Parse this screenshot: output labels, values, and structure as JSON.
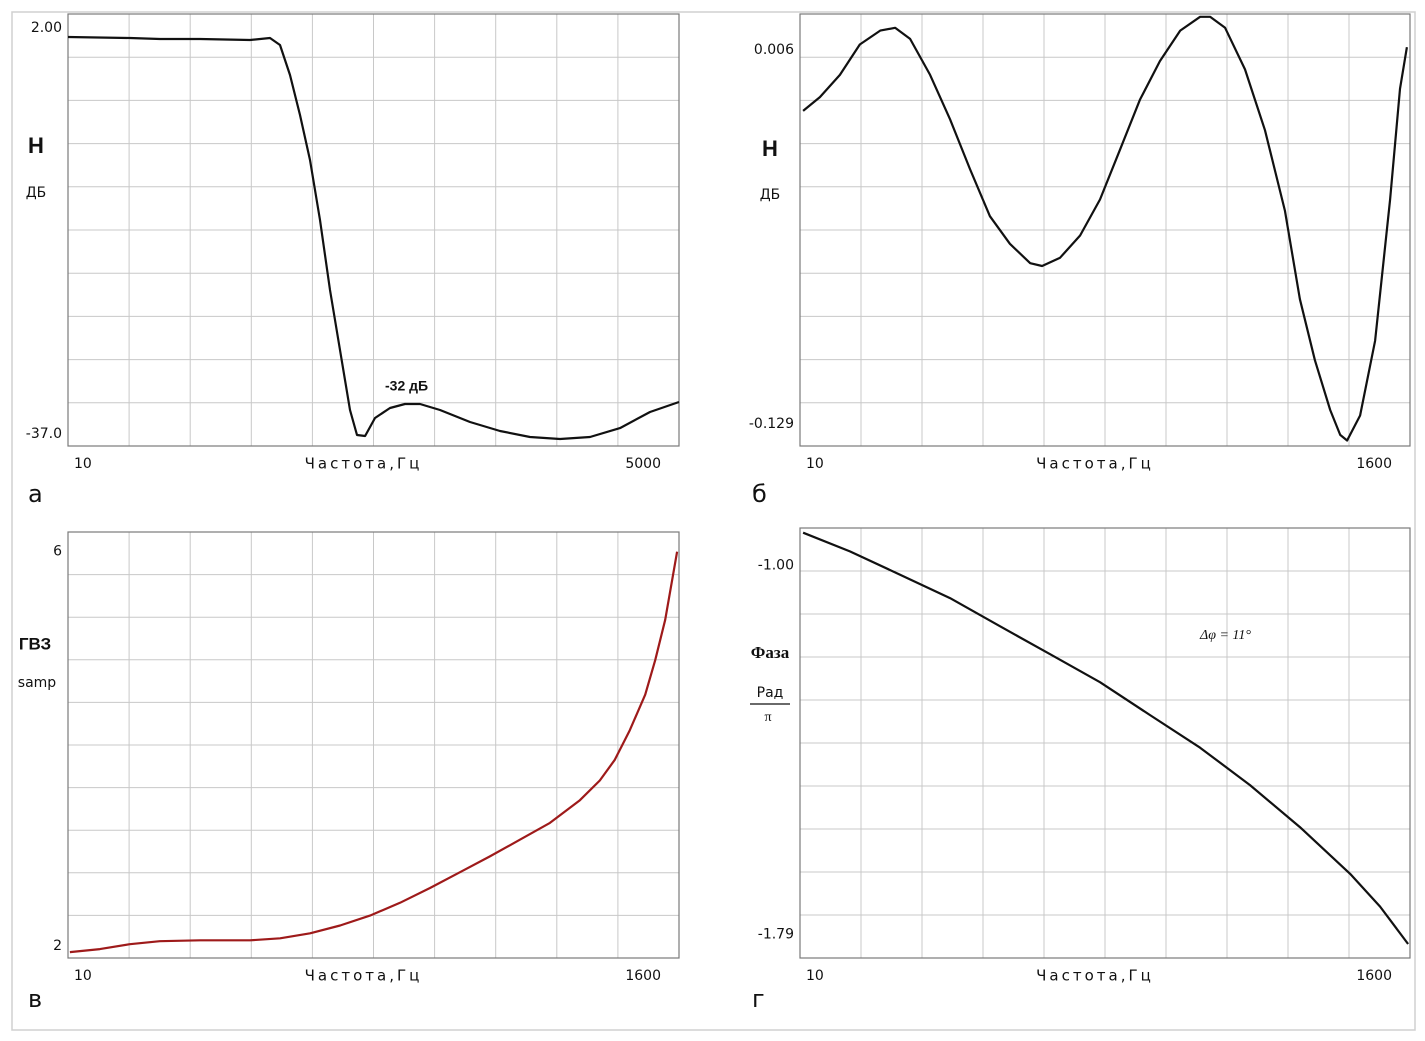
{
  "chart_data": [
    {
      "type": "line",
      "panel_label": "а",
      "y_label": "H",
      "y_unit": "ДБ",
      "x_label": "Частота,Гц",
      "xlim": [
        10,
        5000
      ],
      "xticks": [
        10,
        5000
      ],
      "ylim": [
        -37,
        2
      ],
      "yticks": [
        {
          "value": 2,
          "label": "2.00"
        },
        {
          "value": -37,
          "label": "-37.0"
        }
      ],
      "grid": true,
      "color": "#111111",
      "x": [
        10,
        516,
        761,
        1088,
        1496,
        1660,
        1741,
        1823,
        1905,
        1986,
        2068,
        2150,
        2231,
        2313,
        2370,
        2436,
        2517,
        2640,
        2762,
        2885,
        3048,
        3293,
        3538,
        3783,
        4028,
        4273,
        4518,
        4763,
        5000
      ],
      "values": [
        -0.08,
        -0.17,
        -0.26,
        -0.26,
        -0.35,
        -0.17,
        -0.8,
        -3.51,
        -7.12,
        -11.18,
        -16.6,
        -22.92,
        -28.33,
        -33.75,
        -36.01,
        -36.1,
        -34.47,
        -33.57,
        -33.21,
        -33.21,
        -33.75,
        -34.83,
        -35.65,
        -36.19,
        -36.37,
        -36.19,
        -35.38,
        -33.93,
        -33.03
      ],
      "annotation": "-32 дБ",
      "annotation_color": "#e8311f"
    },
    {
      "type": "line",
      "panel_label": "б",
      "y_label": "H",
      "y_unit": "ДБ",
      "x_label": "Частота,Гц",
      "xlim": [
        10,
        1600
      ],
      "xticks": [
        10,
        1600
      ],
      "ylim": [
        -0.137,
        0.019
      ],
      "yticks": [
        0.006,
        -0.129
      ],
      "grid": true,
      "color": "#111111",
      "x": [
        18,
        62,
        114,
        166,
        219,
        258,
        297,
        349,
        401,
        453,
        505,
        557,
        610,
        641,
        688,
        740,
        792,
        844,
        896,
        948,
        1001,
        1053,
        1079,
        1118,
        1170,
        1222,
        1274,
        1313,
        1352,
        1392,
        1418,
        1436,
        1470,
        1509,
        1548,
        1574,
        1592
      ],
      "values": [
        -0.016,
        -0.011,
        -0.003,
        0.008,
        0.013,
        0.014,
        0.01,
        -0.003,
        -0.019,
        -0.037,
        -0.054,
        -0.064,
        -0.071,
        -0.072,
        -0.069,
        -0.061,
        -0.048,
        -0.03,
        -0.012,
        0.002,
        0.013,
        0.018,
        0.018,
        0.014,
        -0.001,
        -0.023,
        -0.052,
        -0.084,
        -0.106,
        -0.124,
        -0.133,
        -0.135,
        -0.126,
        -0.099,
        -0.048,
        -0.008,
        0.007
      ]
    },
    {
      "type": "line",
      "panel_label": "в",
      "y_label": "ГВЗ",
      "y_unit": "samp",
      "x_label": "Частота,Гц",
      "xlim": [
        10,
        1600
      ],
      "xticks": [
        10,
        1600
      ],
      "ylim": [
        1.88,
        6.2
      ],
      "yticks": [
        6,
        2
      ],
      "grid": true,
      "color": "#9e1a1a",
      "x": [
        15,
        93,
        171,
        249,
        354,
        484,
        562,
        640,
        718,
        796,
        874,
        952,
        1030,
        1108,
        1186,
        1264,
        1342,
        1394,
        1433,
        1472,
        1512,
        1538,
        1564,
        1582,
        1595
      ],
      "values": [
        1.94,
        1.97,
        2.02,
        2.05,
        2.06,
        2.06,
        2.08,
        2.13,
        2.21,
        2.31,
        2.44,
        2.59,
        2.75,
        2.91,
        3.08,
        3.25,
        3.48,
        3.68,
        3.89,
        4.19,
        4.55,
        4.9,
        5.31,
        5.71,
        6.0
      ]
    },
    {
      "type": "line",
      "panel_label": "г",
      "y_label": "Фаза",
      "y_unit": "Рад",
      "y_unit_denominator": "π",
      "x_label": "Частота,Гц",
      "xlim": [
        10,
        1600
      ],
      "xticks": [
        10,
        1600
      ],
      "ylim": [
        -1.84,
        -0.92
      ],
      "yticks": [
        {
          "value": -1,
          "label": "-1.00"
        },
        -1.79
      ],
      "grid": true,
      "color": "#111111",
      "x": [
        18,
        140,
        271,
        401,
        531,
        662,
        792,
        922,
        1053,
        1183,
        1313,
        1444,
        1522,
        1595
      ],
      "values": [
        -0.93,
        -0.97,
        -1.02,
        -1.07,
        -1.13,
        -1.19,
        -1.25,
        -1.32,
        -1.39,
        -1.47,
        -1.56,
        -1.66,
        -1.73,
        -1.81
      ],
      "annotation": "Δφ = 11°",
      "annotation_color": "#111111"
    }
  ]
}
